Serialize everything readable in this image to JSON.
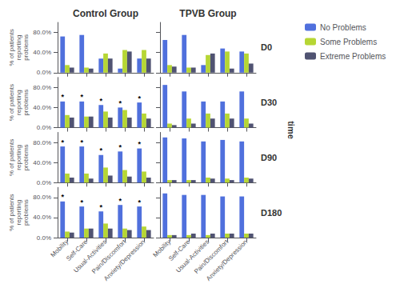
{
  "chart_data": [
    {
      "type": "bar",
      "title": "Control Group",
      "ylabel": "% of patients\nreporting\nproblems",
      "categories": [
        "Mobility",
        "Self-Care",
        "Usual-Activities",
        "Pain/Discomfort",
        "Anxiety/Depression"
      ],
      "series": [
        {
          "name": "No Problems",
          "values": [
            72,
            75,
            28,
            8,
            28
          ]
        },
        {
          "name": "Some Problems",
          "values": [
            15,
            10,
            38,
            45,
            45
          ]
        },
        {
          "name": "Extreme Problems",
          "values": [
            10,
            8,
            28,
            42,
            28
          ]
        }
      ],
      "ylim": [
        0,
        100
      ],
      "yticks": [
        {
          "value": 0,
          "label": "0.0%"
        },
        {
          "value": 40,
          "label": "40.0%"
        },
        {
          "value": 80,
          "label": "80.0%"
        }
      ],
      "grid": false,
      "tick_labels": "y"
    },
    {
      "type": "bar",
      "title": "TPVB Group",
      "subtitle": "D0",
      "categories": [
        "Mobility",
        "Self-Care",
        "Usual-Activities",
        "Pain/Discomfort",
        "Anxiety/Depression"
      ],
      "series": [
        {
          "name": "No Problems",
          "values": [
            65,
            75,
            15,
            48,
            42
          ]
        },
        {
          "name": "Some Problems",
          "values": [
            15,
            10,
            35,
            42,
            38
          ]
        },
        {
          "name": "Extreme Problems",
          "values": [
            12,
            10,
            38,
            8,
            18
          ]
        }
      ],
      "ylim": [
        0,
        100
      ],
      "yticks": [
        {
          "value": 0,
          "label": "0.0%"
        },
        {
          "value": 40,
          "label": "40.0%"
        },
        {
          "value": 80,
          "label": "80.0%"
        }
      ],
      "grid": false,
      "tick_labels": false,
      "legend": "upper right",
      "annotations": [
        {
          "text": "time"
        }
      ]
    },
    {
      "type": "bar",
      "ylabel": "% of patients\nreporting\nproblems",
      "categories": [
        "Mobility",
        "Self-Care",
        "Usual-Activities",
        "Pain/Discomfort",
        "Anxiety/Depression"
      ],
      "series": [
        {
          "name": "No Problems",
          "values": [
            52,
            52,
            45,
            40,
            50
          ]
        },
        {
          "name": "Some Problems",
          "values": [
            25,
            22,
            32,
            35,
            28
          ]
        },
        {
          "name": "Extreme Problems",
          "values": [
            20,
            22,
            20,
            20,
            18
          ]
        }
      ],
      "ylim": [
        0,
        100
      ],
      "yticks": [
        {
          "value": 0,
          "label": "0.0%"
        },
        {
          "value": 40,
          "label": "40.0%"
        },
        {
          "value": 80,
          "label": "80.0%"
        }
      ],
      "grid": false,
      "tick_labels": "y",
      "annotations": [
        {
          "text": "*",
          "category": "Mobility",
          "series": "No Problems"
        },
        {
          "text": "*",
          "category": "Self-Care",
          "series": "No Problems"
        },
        {
          "text": "*",
          "category": "Usual-Activities",
          "series": "No Problems"
        },
        {
          "text": "*",
          "category": "Pain/Discomfort",
          "series": "No Problems"
        },
        {
          "text": "*",
          "category": "Anxiety/Depression",
          "series": "No Problems"
        }
      ]
    },
    {
      "type": "bar",
      "subtitle": "D30",
      "categories": [
        "Mobility",
        "Self-Care",
        "Usual-Activities",
        "Pain/Discomfort",
        "Anxiety/Depression"
      ],
      "series": [
        {
          "name": "No Problems",
          "values": [
            85,
            72,
            52,
            52,
            72
          ]
        },
        {
          "name": "Some Problems",
          "values": [
            8,
            18,
            28,
            28,
            18
          ]
        },
        {
          "name": "Extreme Problems",
          "values": [
            5,
            8,
            18,
            18,
            8
          ]
        }
      ],
      "ylim": [
        0,
        100
      ],
      "yticks": [
        {
          "value": 0,
          "label": "0.0%"
        },
        {
          "value": 40,
          "label": "40.0%"
        },
        {
          "value": 80,
          "label": "80.0%"
        }
      ],
      "grid": false,
      "tick_labels": false
    },
    {
      "type": "bar",
      "ylabel": "% of patients\nreporting\nproblems",
      "categories": [
        "Mobility",
        "Self-Care",
        "Usual-Activities",
        "Pain/Discomfort",
        "Anxiety/Depression"
      ],
      "series": [
        {
          "name": "No Problems",
          "values": [
            72,
            72,
            55,
            62,
            68
          ]
        },
        {
          "name": "Some Problems",
          "values": [
            18,
            18,
            30,
            25,
            22
          ]
        },
        {
          "name": "Extreme Problems",
          "values": [
            10,
            8,
            14,
            12,
            10
          ]
        }
      ],
      "ylim": [
        0,
        100
      ],
      "yticks": [
        {
          "value": 0,
          "label": "0.0%"
        },
        {
          "value": 40,
          "label": "40.0%"
        },
        {
          "value": 80,
          "label": "80.0%"
        }
      ],
      "grid": false,
      "tick_labels": "y",
      "annotations": [
        {
          "text": "*",
          "category": "Mobility",
          "series": "No Problems"
        },
        {
          "text": "*",
          "category": "Self-Care",
          "series": "No Problems"
        },
        {
          "text": "*",
          "category": "Usual-Activities",
          "series": "No Problems"
        },
        {
          "text": "*",
          "category": "Pain/Discomfort",
          "series": "No Problems"
        },
        {
          "text": "*",
          "category": "Anxiety/Depression",
          "series": "No Problems"
        }
      ]
    },
    {
      "type": "bar",
      "subtitle": "D90",
      "categories": [
        "Mobility",
        "Self-Care",
        "Usual-Activities",
        "Pain/Discomfort",
        "Anxiety/Depression"
      ],
      "series": [
        {
          "name": "No Problems",
          "values": [
            90,
            88,
            82,
            85,
            82
          ]
        },
        {
          "name": "Some Problems",
          "values": [
            5,
            5,
            10,
            8,
            10
          ]
        },
        {
          "name": "Extreme Problems",
          "values": [
            5,
            5,
            8,
            5,
            8
          ]
        }
      ],
      "ylim": [
        0,
        100
      ],
      "yticks": [
        {
          "value": 0,
          "label": "0.0%"
        },
        {
          "value": 40,
          "label": "40.0%"
        },
        {
          "value": 80,
          "label": "80.0%"
        }
      ],
      "grid": false,
      "tick_labels": false
    },
    {
      "type": "bar",
      "ylabel": "% of patients\nreporting\nproblems",
      "categories": [
        "Mobility",
        "Self-Care",
        "Usual-Activities",
        "Pain/Discomfort",
        "Anxiety/Depression"
      ],
      "series": [
        {
          "name": "No Problems",
          "values": [
            72,
            62,
            52,
            65,
            62
          ]
        },
        {
          "name": "Some Problems",
          "values": [
            12,
            18,
            28,
            18,
            22
          ]
        },
        {
          "name": "Extreme Problems",
          "values": [
            10,
            18,
            18,
            15,
            15
          ]
        }
      ],
      "ylim": [
        0,
        100
      ],
      "yticks": [
        {
          "value": 0,
          "label": "0.0%"
        },
        {
          "value": 40,
          "label": "40.0%"
        },
        {
          "value": 80,
          "label": "80.0%"
        }
      ],
      "grid": false,
      "annotations": [
        {
          "text": "*",
          "category": "Mobility",
          "series": "No Problems"
        },
        {
          "text": "*",
          "category": "Self-Care",
          "series": "No Problems"
        },
        {
          "text": "*",
          "category": "Usual-Activities",
          "series": "No Problems"
        },
        {
          "text": "*",
          "category": "Pain/Discomfort",
          "series": "No Problems"
        },
        {
          "text": "*",
          "category": "Anxiety/Depression",
          "series": "No Problems"
        }
      ]
    },
    {
      "type": "bar",
      "subtitle": "D180",
      "categories": [
        "Mobility",
        "Self-Care",
        "Usual-Activities",
        "Pain/Discomfort",
        "Anxiety/Depression"
      ],
      "series": [
        {
          "name": "No Problems",
          "values": [
            88,
            85,
            85,
            82,
            82
          ]
        },
        {
          "name": "Some Problems",
          "values": [
            5,
            5,
            5,
            8,
            8
          ]
        },
        {
          "name": "Extreme Problems",
          "values": [
            5,
            8,
            8,
            8,
            8
          ]
        }
      ],
      "ylim": [
        0,
        100
      ],
      "yticks": [
        {
          "value": 0,
          "label": "0.0%"
        },
        {
          "value": 40,
          "label": "40.0%"
        },
        {
          "value": 80,
          "label": "80.0%"
        }
      ],
      "grid": false,
      "tick_labels": "x"
    }
  ]
}
